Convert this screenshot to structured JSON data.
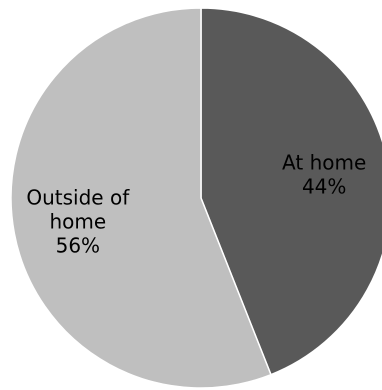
{
  "chart_data": {
    "type": "pie",
    "slices": [
      {
        "label_lines": [
          "At home",
          "44%"
        ],
        "category": "At home",
        "value": 44,
        "color": "#595959"
      },
      {
        "label_lines": [
          "Outside of",
          "home",
          "56%"
        ],
        "category": "Outside of home",
        "value": 56,
        "color": "#bfbfbf"
      }
    ],
    "start_angle_deg": 0,
    "direction": "clockwise"
  }
}
